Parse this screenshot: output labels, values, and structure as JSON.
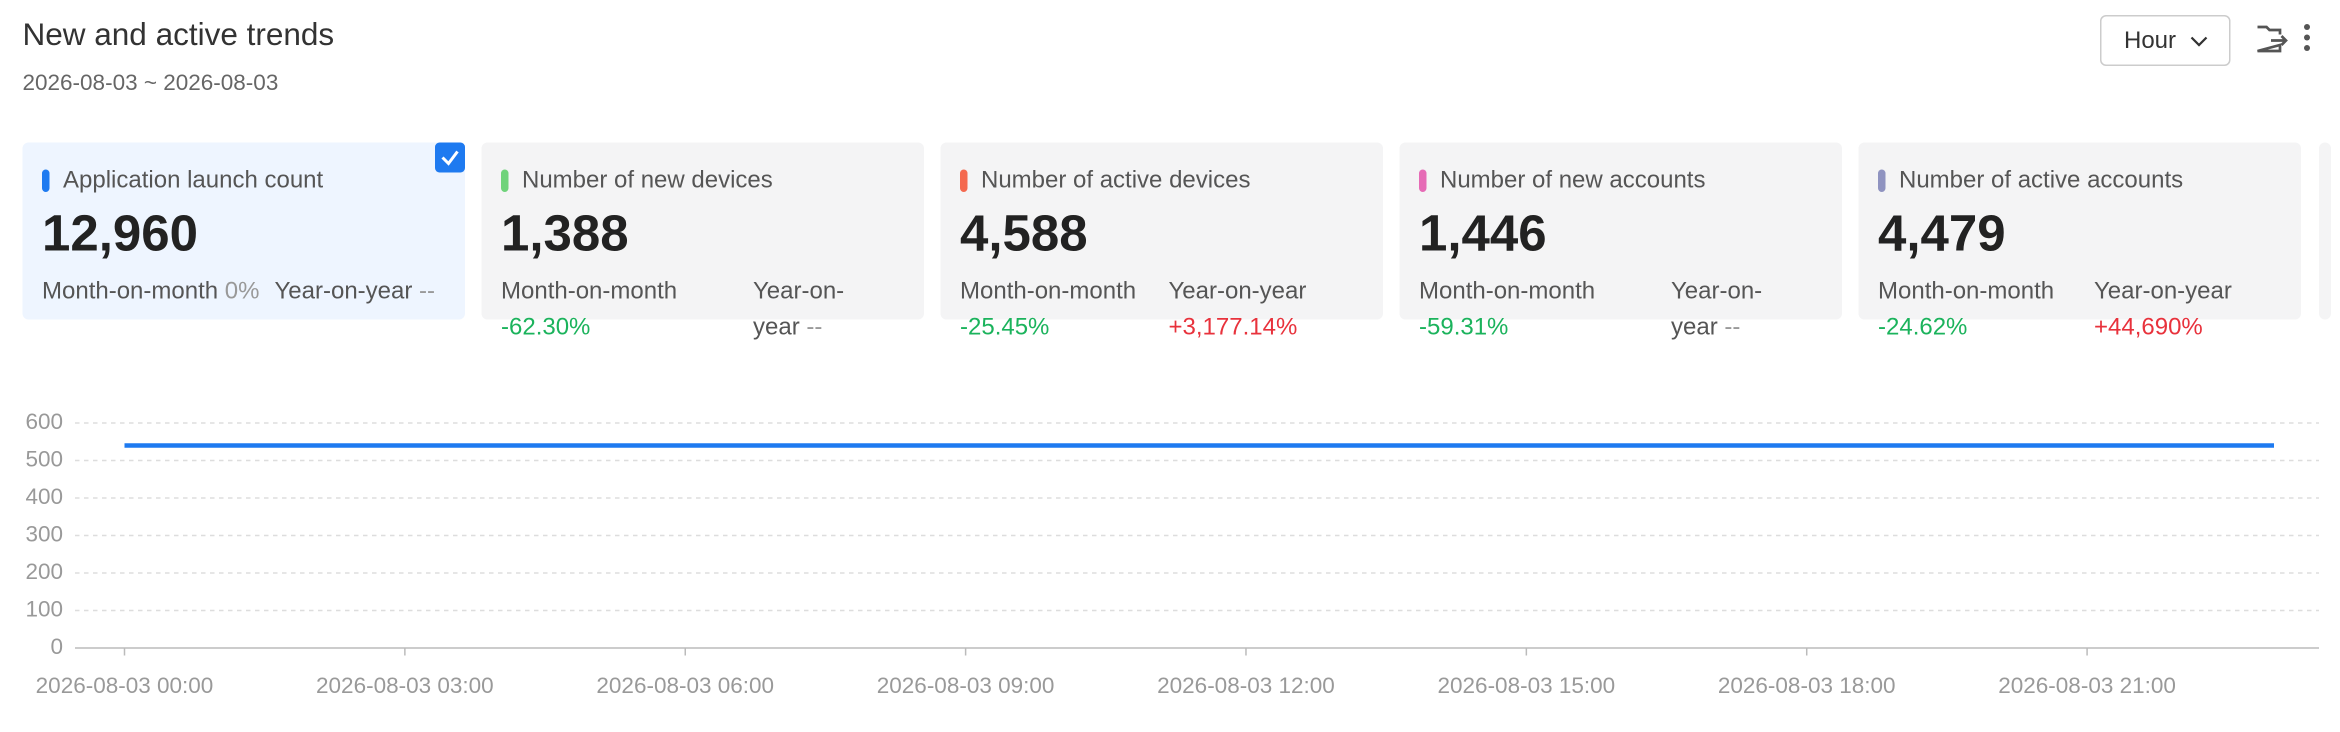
{
  "header": {
    "title": "New and active trends",
    "date_range": "2026-08-03 ~ 2026-08-03",
    "granularity": "Hour"
  },
  "cards": [
    {
      "label": "Application launch count",
      "value": "12,960",
      "mom_label": "Month-on-month",
      "mom": "0%",
      "yoy_label": "Year-on-year",
      "yoy": "--",
      "color": "#1e7af0",
      "selected": true
    },
    {
      "label": "Number of new devices",
      "value": "1,388",
      "mom_label": "Month-on-month",
      "mom": "-62.30%",
      "yoy_label": "Year-on-year",
      "yoy": "--",
      "color": "#6fd37a"
    },
    {
      "label": "Number of active devices",
      "value": "4,588",
      "mom_label": "Month-on-month",
      "mom": "-25.45%",
      "yoy_label": "Year-on-year",
      "yoy": "+3,177.14%",
      "color": "#f4694f"
    },
    {
      "label": "Number of new accounts",
      "value": "1,446",
      "mom_label": "Month-on-month",
      "mom": "-59.31%",
      "yoy_label": "Year-on-year",
      "yoy": "--",
      "color": "#e66bb6"
    },
    {
      "label": "Number of active accounts",
      "value": "4,479",
      "mom_label": "Month-on-month",
      "mom": "-24.62%",
      "yoy_label": "Year-on-year",
      "yoy": "+44,690%",
      "color": "#8f93c0"
    }
  ],
  "chart_data": {
    "type": "line",
    "categories": [
      "2026-08-03 00:00",
      null,
      null,
      "2026-08-03 03:00",
      null,
      null,
      "2026-08-03 06:00",
      null,
      null,
      "2026-08-03 09:00",
      null,
      null,
      "2026-08-03 12:00",
      null,
      null,
      "2026-08-03 15:00",
      null,
      null,
      "2026-08-03 18:00",
      null,
      null,
      "2026-08-03 21:00",
      null,
      null
    ],
    "values": [
      540,
      540,
      540,
      540,
      540,
      540,
      540,
      540,
      540,
      540,
      540,
      540,
      540,
      540,
      540,
      540,
      540,
      540,
      540,
      540,
      540,
      540,
      540,
      540
    ],
    "color": "#1e7af0",
    "ylim": [
      0,
      600
    ],
    "yticks": [
      0,
      100,
      200,
      300,
      400,
      500,
      600
    ],
    "grid": true
  }
}
